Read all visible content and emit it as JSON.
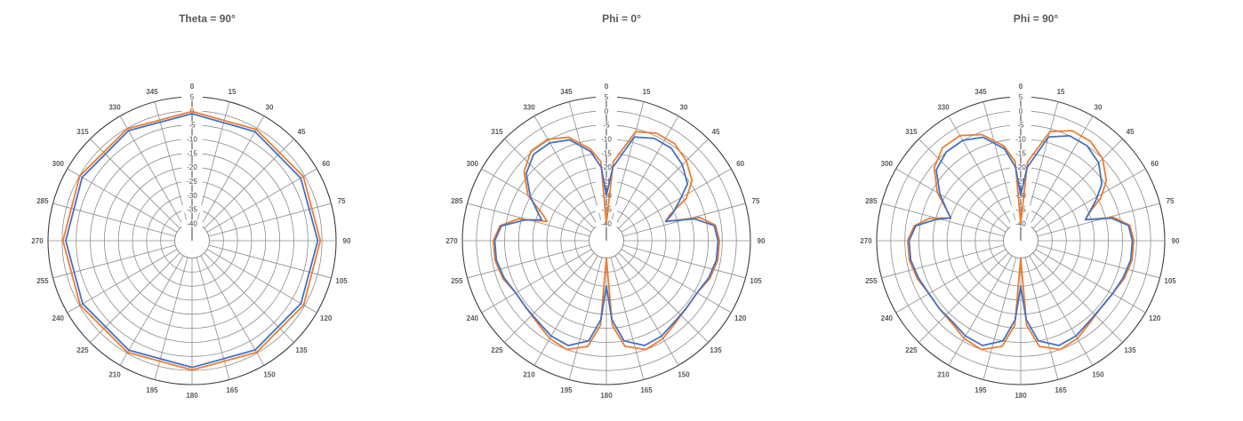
{
  "chart_data": [
    {
      "type": "polar-line",
      "title": "Theta = 90°",
      "radial_ticks": [
        "5",
        "0",
        "-5",
        "-10",
        "-15",
        "-20",
        "-25",
        "-30",
        "-35",
        "-40"
      ],
      "r_range": [
        -40,
        5
      ],
      "angle_labels": [
        "0",
        "15",
        "30",
        "45",
        "60",
        "75",
        "90",
        "105",
        "120",
        "135",
        "150",
        "165",
        "180",
        "195",
        "210",
        "225",
        "240",
        "255",
        "270",
        "285",
        "300",
        "315",
        "330",
        "345"
      ],
      "angle_direction": "clockwise from top",
      "grid": true,
      "series": [
        {
          "color": "#ED7D31",
          "angles": [
            0,
            30,
            60,
            90,
            120,
            150,
            180,
            210,
            240,
            270,
            300,
            330
          ],
          "values": [
            -0.2,
            -0.5,
            -0.5,
            -0.6,
            -0.4,
            -0.3,
            -0.2,
            -0.3,
            -0.3,
            -0.3,
            -0.1,
            -0.2
          ]
        },
        {
          "color": "#4472C4",
          "angles": [
            0,
            30,
            60,
            90,
            120,
            150,
            180,
            210,
            240,
            270,
            300,
            330
          ],
          "values": [
            -1.0,
            -1.4,
            -1.6,
            -1.5,
            -1.5,
            -1.3,
            -1.1,
            -1.2,
            -1.3,
            -1.3,
            -1.1,
            -1.0
          ]
        }
      ]
    },
    {
      "type": "polar-line",
      "title": "Phi = 0°",
      "radial_ticks": [
        "5",
        "0",
        "-5",
        "-10",
        "-15",
        "-20",
        "-25",
        "-30",
        "-35",
        "-40"
      ],
      "r_range": [
        -40,
        5
      ],
      "angle_labels": [
        "0",
        "15",
        "30",
        "45",
        "60",
        "75",
        "90",
        "105",
        "120",
        "135",
        "150",
        "165",
        "180",
        "195",
        "210",
        "225",
        "240",
        "255",
        "270",
        "285",
        "300",
        "315",
        "330",
        "345"
      ],
      "angle_direction": "clockwise from top",
      "grid": true,
      "series": [
        {
          "color": "#ED7D31",
          "angles": [
            0,
            5,
            15,
            25,
            35,
            45,
            55,
            62,
            68,
            72,
            76,
            82,
            90,
            100,
            110,
            120,
            130,
            140,
            150,
            160,
            170,
            176,
            180,
            184,
            190,
            200,
            210,
            220,
            230,
            240,
            250,
            260,
            270,
            278,
            284,
            288,
            292,
            300,
            310,
            320,
            330,
            340,
            350,
            356
          ],
          "values": [
            -40,
            -18,
            -6,
            -4,
            -4,
            -6,
            -9,
            -14,
            -22,
            -24,
            -12,
            -7,
            -6,
            -6,
            -7,
            -9,
            -9,
            -8,
            -6,
            -5,
            -8,
            -16,
            -40,
            -16,
            -8,
            -5,
            -6,
            -8,
            -9,
            -9,
            -7,
            -6,
            -6,
            -8,
            -14,
            -24,
            -22,
            -14,
            -8,
            -4.5,
            -4.5,
            -7,
            -13,
            -18
          ]
        },
        {
          "color": "#4472C4",
          "angles": [
            0,
            5,
            15,
            25,
            35,
            45,
            55,
            62,
            68,
            72,
            76,
            82,
            90,
            100,
            110,
            120,
            130,
            140,
            150,
            160,
            170,
            176,
            180,
            184,
            190,
            200,
            210,
            220,
            230,
            240,
            250,
            260,
            270,
            278,
            284,
            288,
            292,
            300,
            310,
            320,
            330,
            340,
            350,
            356
          ],
          "values": [
            -30,
            -20,
            -8,
            -6,
            -6,
            -8,
            -11,
            -17,
            -21,
            -24,
            -14,
            -7.5,
            -6.5,
            -6.5,
            -7.5,
            -9,
            -9,
            -8.5,
            -7,
            -6.5,
            -10,
            -18,
            -30,
            -18,
            -10,
            -6.5,
            -7,
            -8.5,
            -9,
            -9,
            -7.5,
            -6.5,
            -6.5,
            -8.5,
            -16,
            -22,
            -20,
            -15,
            -9,
            -6,
            -6,
            -8,
            -14,
            -20
          ]
        }
      ]
    },
    {
      "type": "polar-line",
      "title": "Phi = 90°",
      "radial_ticks": [
        "5",
        "0",
        "-5",
        "-10",
        "-15",
        "-20",
        "-25",
        "-30",
        "-35",
        "-40"
      ],
      "r_range": [
        -40,
        5
      ],
      "angle_labels": [
        "0",
        "15",
        "30",
        "45",
        "60",
        "75",
        "90",
        "105",
        "120",
        "135",
        "150",
        "165",
        "180",
        "195",
        "210",
        "225",
        "240",
        "255",
        "270",
        "285",
        "300",
        "315",
        "330",
        "345"
      ],
      "angle_direction": "clockwise from top",
      "grid": true,
      "series": [
        {
          "color": "#ED7D31",
          "angles": [
            0,
            5,
            15,
            25,
            35,
            45,
            55,
            62,
            68,
            72,
            76,
            82,
            90,
            100,
            110,
            120,
            130,
            140,
            150,
            160,
            170,
            176,
            180,
            184,
            190,
            200,
            210,
            220,
            230,
            240,
            250,
            260,
            270,
            278,
            284,
            288,
            292,
            300,
            310,
            320,
            330,
            340,
            350,
            356
          ],
          "values": [
            -40,
            -18,
            -6,
            -3,
            -3,
            -5,
            -9,
            -14,
            -20,
            -22,
            -12,
            -7,
            -6,
            -6,
            -7,
            -8.5,
            -9,
            -8,
            -6,
            -5,
            -8,
            -16,
            -40,
            -16,
            -8,
            -5,
            -6,
            -8,
            -8.5,
            -8.5,
            -7,
            -6,
            -6,
            -8,
            -13,
            -20,
            -18,
            -12,
            -6,
            -3,
            -3,
            -6,
            -12,
            -18
          ]
        },
        {
          "color": "#4472C4",
          "angles": [
            0,
            5,
            15,
            25,
            35,
            45,
            55,
            62,
            68,
            72,
            76,
            82,
            90,
            100,
            110,
            120,
            130,
            140,
            150,
            160,
            170,
            176,
            180,
            184,
            190,
            200,
            210,
            220,
            230,
            240,
            250,
            260,
            270,
            278,
            284,
            288,
            292,
            300,
            310,
            320,
            330,
            340,
            350,
            356
          ],
          "values": [
            -30,
            -20,
            -8,
            -5,
            -5,
            -7,
            -11,
            -16,
            -20,
            -22,
            -13,
            -7.5,
            -6.5,
            -6.5,
            -7.5,
            -8.5,
            -9,
            -8.5,
            -7,
            -6.5,
            -10,
            -18,
            -30,
            -18,
            -10,
            -6.5,
            -7,
            -8.5,
            -8.5,
            -8.5,
            -7.5,
            -6.5,
            -6.5,
            -8.5,
            -15,
            -20,
            -18,
            -13,
            -7,
            -5,
            -5,
            -7,
            -13,
            -20
          ]
        }
      ]
    }
  ]
}
